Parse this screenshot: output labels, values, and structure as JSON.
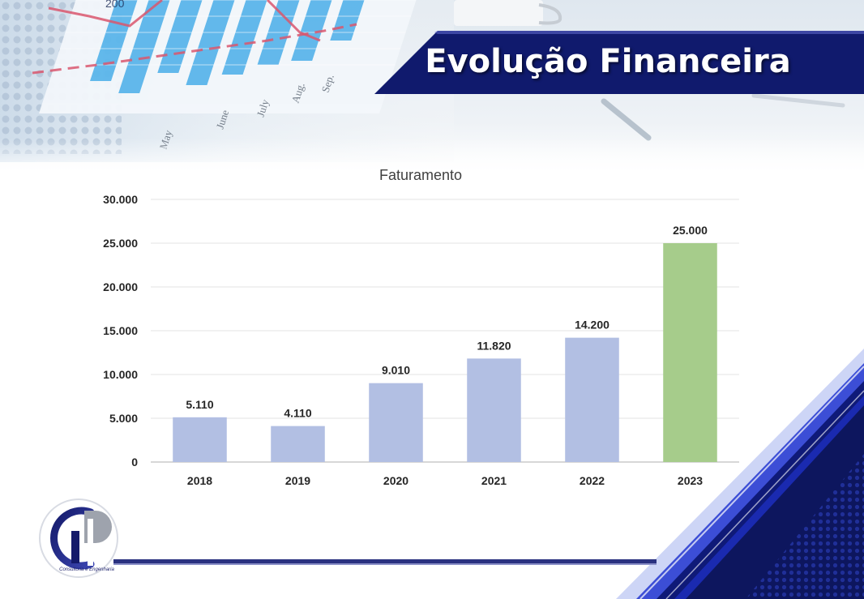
{
  "slide": {
    "title": "Evolução Financeira",
    "logo_caption": "Consultoria e Engenharia",
    "colors": {
      "navy": "#111a6e",
      "accent_blue": "#3d4fd6"
    }
  },
  "background_photo": {
    "month_labels": [
      "May",
      "June",
      "July",
      "Aug.",
      "Sep."
    ],
    "number_label": "200"
  },
  "chart_data": {
    "type": "bar",
    "title": "Faturamento",
    "xlabel": "",
    "ylabel": "",
    "categories": [
      "2018",
      "2019",
      "2020",
      "2021",
      "2022",
      "2023"
    ],
    "values": [
      5110,
      4110,
      9010,
      11820,
      14200,
      25000
    ],
    "value_labels": [
      "5.110",
      "4.110",
      "9.010",
      "11.820",
      "14.200",
      "25.000"
    ],
    "ylim": [
      0,
      30000
    ],
    "yticks": [
      0,
      5000,
      10000,
      15000,
      20000,
      25000,
      30000
    ],
    "ytick_labels": [
      "0",
      "5.000",
      "10.000",
      "15.000",
      "20.000",
      "25.000",
      "30.000"
    ],
    "grid": true,
    "legend": "none",
    "bar_colors": [
      "#b2bfe3",
      "#b2bfe3",
      "#b2bfe3",
      "#b2bfe3",
      "#b2bfe3",
      "#a6cc8b"
    ]
  }
}
